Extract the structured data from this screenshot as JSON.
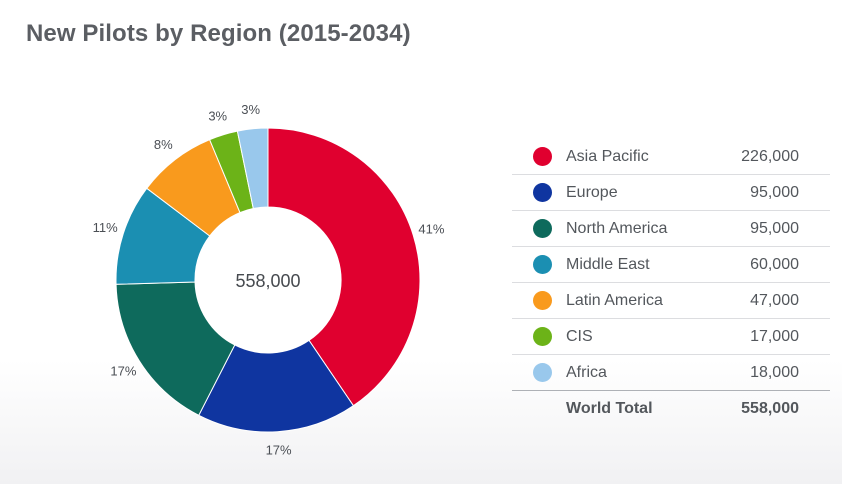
{
  "title": "New Pilots by Region (2015-2034)",
  "chart_data": {
    "type": "pie",
    "variant": "donut",
    "title": "New Pilots by Region (2015-2034)",
    "center_label": "558,000",
    "slices": [
      {
        "name": "Asia Pacific",
        "value": 226000,
        "value_label": "226,000",
        "percent_label": "41%",
        "color": "#e0002f"
      },
      {
        "name": "Europe",
        "value": 95000,
        "value_label": "95,000",
        "percent_label": "17%",
        "color": "#0f35a0"
      },
      {
        "name": "North America",
        "value": 95000,
        "value_label": "95,000",
        "percent_label": "17%",
        "color": "#0e6a5c"
      },
      {
        "name": "Middle East",
        "value": 60000,
        "value_label": "60,000",
        "percent_label": "11%",
        "color": "#1b8fb2"
      },
      {
        "name": "Latin America",
        "value": 47000,
        "value_label": "47,000",
        "percent_label": "8%",
        "color": "#f99a1d"
      },
      {
        "name": "CIS",
        "value": 17000,
        "value_label": "17,000",
        "percent_label": "3%",
        "color": "#6cb318"
      },
      {
        "name": "Africa",
        "value": 18000,
        "value_label": "18,000",
        "percent_label": "3%",
        "color": "#99c8ec"
      }
    ],
    "total": {
      "label": "World Total",
      "value": 558000,
      "value_label": "558,000"
    },
    "legend_position": "right"
  }
}
